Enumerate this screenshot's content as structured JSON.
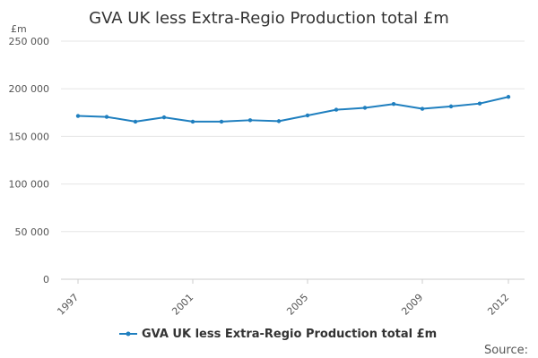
{
  "chart_data": {
    "type": "line",
    "title": "GVA UK less Extra-Regio Production total £m",
    "ylabel": "£m",
    "xlabel": "",
    "ylim": [
      0,
      250000
    ],
    "yticks": [
      0,
      50000,
      100000,
      150000,
      200000,
      250000
    ],
    "ytick_labels": [
      "0",
      "50 000",
      "100 000",
      "150 000",
      "200 000",
      "250 000"
    ],
    "xlim": [
      1997,
      2012
    ],
    "xtick_labels": [
      "1997",
      "2001",
      "2005",
      "2009",
      "2012"
    ],
    "grid": true,
    "legend_position": "bottom",
    "series": [
      {
        "name": "GVA UK less Extra-Regio Production total £m",
        "color": "#1f7fbf",
        "x": [
          1997,
          1998,
          1999,
          2000,
          2001,
          2002,
          2003,
          2004,
          2005,
          2006,
          2007,
          2008,
          2009,
          2010,
          2011,
          2012
        ],
        "values": [
          171500,
          170500,
          165500,
          170000,
          165500,
          165500,
          167000,
          166000,
          172000,
          178000,
          180000,
          184000,
          179000,
          181500,
          184500,
          191500
        ]
      }
    ]
  },
  "source_label": "Source:"
}
